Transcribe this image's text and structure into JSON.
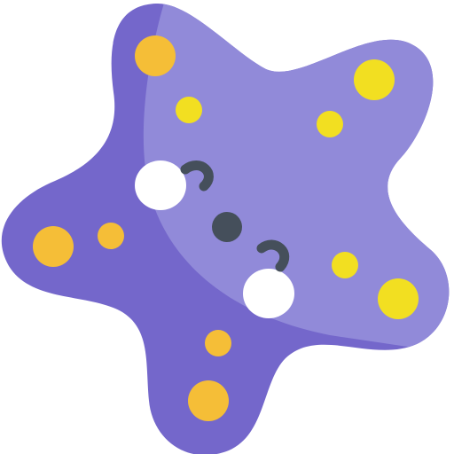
{
  "illustration": {
    "subject": "kawaii-starfish",
    "colors": {
      "body_dark": "#7467CB",
      "body_light": "#918AD9",
      "spot_orange": "#F5BE37",
      "spot_yellow": "#F2DF21",
      "cheek": "#FFFFFF",
      "features": "#454F5B"
    }
  }
}
